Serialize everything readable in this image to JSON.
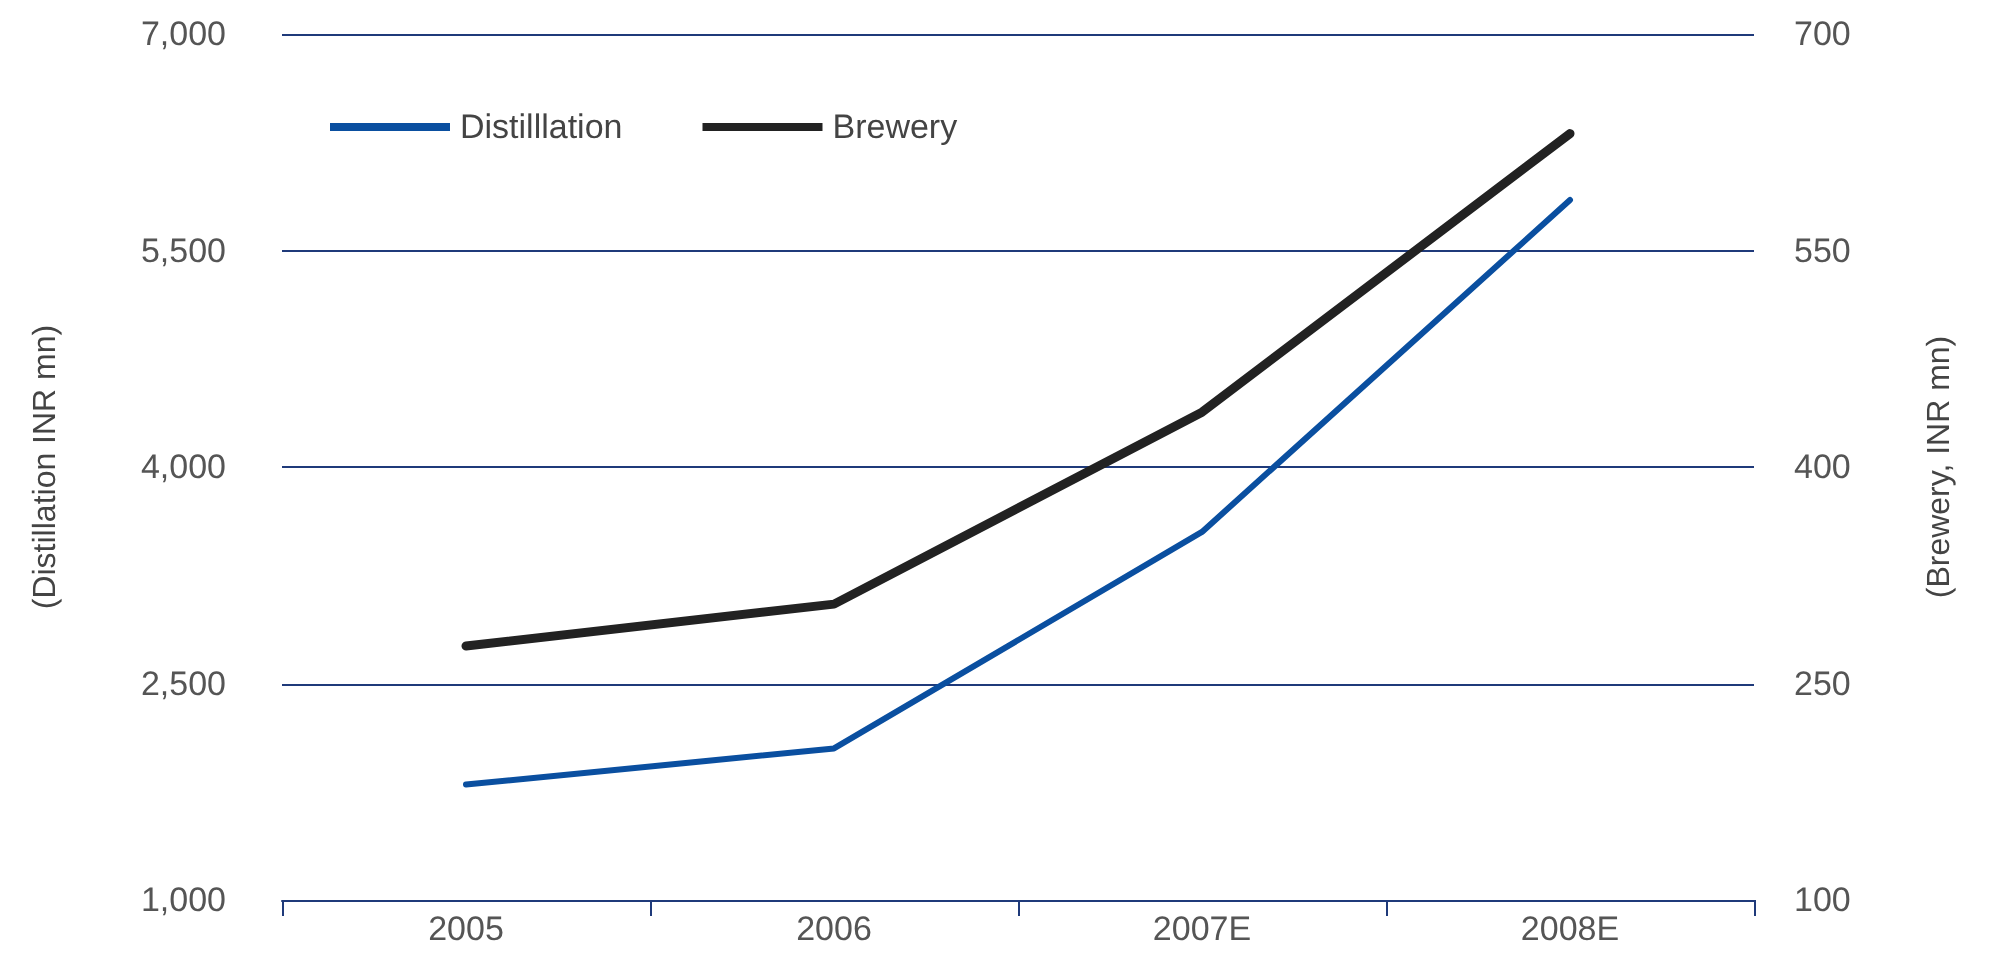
{
  "chart_data": {
    "type": "line",
    "ylabel": "(Distillation INR mn)",
    "y2label": "(Brewery, INR mn)",
    "categories": [
      "2005",
      "2006",
      "2007E",
      "2008E"
    ],
    "series": [
      {
        "name": "Distilllation",
        "color": "#0a4fa0",
        "values": [
          1800,
          2050,
          3550,
          5850
        ]
      },
      {
        "name": "Brewery",
        "color": "#222222",
        "axis": "y2",
        "values": [
          276,
          305,
          438,
          631
        ]
      }
    ],
    "ylim": [
      1000,
      7000
    ],
    "yticks": [
      {
        "value": 1000,
        "label": "1,000"
      },
      {
        "value": 2500,
        "label": "2,500"
      },
      {
        "value": 4000,
        "label": "4,000"
      },
      {
        "value": 5500,
        "label": "5,500"
      },
      {
        "value": 7000,
        "label": "7,000"
      }
    ],
    "y2lim": [
      100,
      700
    ],
    "y2ticks": [
      100,
      250,
      400,
      550,
      700
    ],
    "grid": "y",
    "legend": "top left",
    "marker": "none",
    "line_style": "solid"
  }
}
